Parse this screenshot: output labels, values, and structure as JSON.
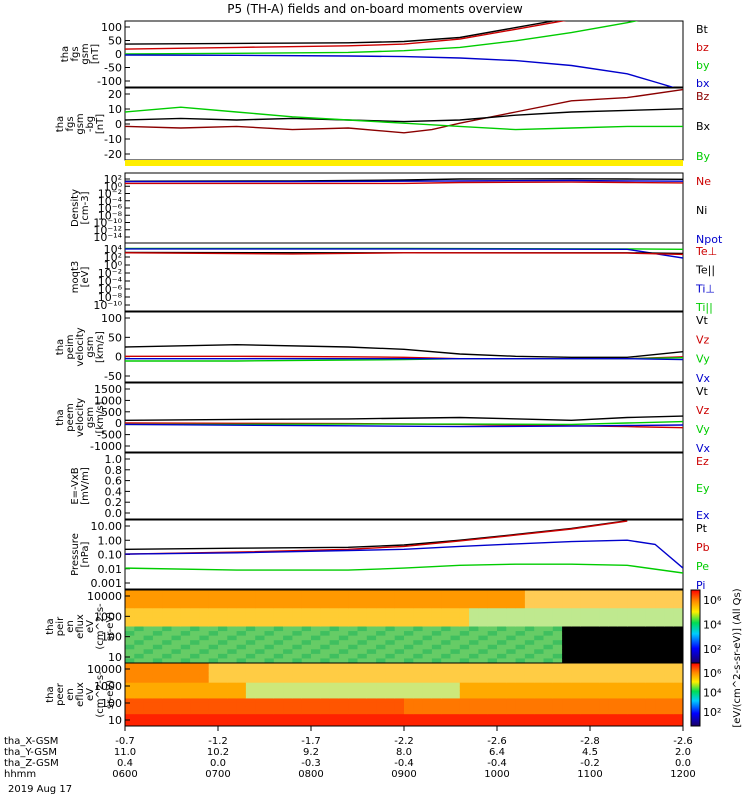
{
  "title": "P5 (TH-A) fields and on-board moments overview",
  "date_label": "2019 Aug 17",
  "chart_data": [
    {
      "id": "fgs_gsm",
      "type": "line",
      "ylabel": [
        "tha",
        "fgs",
        "gsm",
        "[nT]"
      ],
      "ylim": [
        -100,
        100
      ],
      "yticks": [
        "100",
        "50",
        "0",
        "-50",
        "-100"
      ],
      "legend": [
        {
          "name": "Bt",
          "color": "#000000"
        },
        {
          "name": "bz",
          "color": "#cc0000"
        },
        {
          "name": "by",
          "color": "#00cc00"
        },
        {
          "name": "bx",
          "color": "#0000cc"
        }
      ],
      "series": [
        {
          "name": "Bt",
          "color": "#000000",
          "t": [
            0,
            0.2,
            0.4,
            0.5,
            0.6,
            0.7,
            0.8,
            0.9,
            1
          ],
          "v": [
            30,
            32,
            34,
            38,
            50,
            80,
            110,
            140,
            160
          ]
        },
        {
          "name": "bz",
          "color": "#cc0000",
          "t": [
            0,
            0.2,
            0.4,
            0.5,
            0.6,
            0.7,
            0.8,
            0.9,
            1
          ],
          "v": [
            15,
            20,
            25,
            30,
            45,
            75,
            105,
            135,
            155
          ]
        },
        {
          "name": "by",
          "color": "#00cc00",
          "t": [
            0,
            0.2,
            0.4,
            0.5,
            0.6,
            0.7,
            0.8,
            0.9,
            1
          ],
          "v": [
            0,
            2,
            5,
            10,
            20,
            40,
            65,
            95,
            130
          ]
        },
        {
          "name": "bx",
          "color": "#0000cc",
          "t": [
            0,
            0.2,
            0.4,
            0.5,
            0.6,
            0.7,
            0.8,
            0.9,
            0.95,
            1
          ],
          "v": [
            -3,
            -4,
            -6,
            -8,
            -12,
            -20,
            -35,
            -60,
            -85,
            -110
          ]
        }
      ]
    },
    {
      "id": "fgs_dsl",
      "type": "line",
      "ylabel": [
        "tha",
        "fgs",
        "gsm",
        "-bg",
        "[nT]"
      ],
      "ylim": [
        -25,
        20
      ],
      "yticks": [
        "20",
        "10",
        "0",
        "-10",
        "-20"
      ],
      "legend": [
        {
          "name": "Bz",
          "color": "#8b0000"
        },
        {
          "name": "Bx",
          "color": "#000000"
        },
        {
          "name": "By",
          "color": "#00cc00"
        }
      ],
      "series": [
        {
          "name": "Bz",
          "color": "#8b0000",
          "t": [
            0,
            0.1,
            0.2,
            0.3,
            0.4,
            0.5,
            0.55,
            0.6,
            0.7,
            0.8,
            0.9,
            1
          ],
          "v": [
            -4,
            -5,
            -4,
            -6,
            -5,
            -8,
            -6,
            -2,
            5,
            12,
            14,
            19
          ]
        },
        {
          "name": "Bx",
          "color": "#000000",
          "t": [
            0,
            0.1,
            0.2,
            0.3,
            0.4,
            0.5,
            0.6,
            0.7,
            0.8,
            0.9,
            1
          ],
          "v": [
            0,
            1,
            0,
            1,
            0,
            -1,
            0,
            3,
            5,
            6,
            7
          ]
        },
        {
          "name": "By",
          "color": "#00cc00",
          "t": [
            0,
            0.1,
            0.2,
            0.3,
            0.4,
            0.5,
            0.6,
            0.7,
            0.8,
            0.9,
            1
          ],
          "v": [
            5,
            8,
            5,
            2,
            0,
            -2,
            -4,
            -6,
            -5,
            -4,
            -4
          ]
        }
      ]
    },
    {
      "id": "flag",
      "type": "bar",
      "color": "#ffee00"
    },
    {
      "id": "density",
      "type": "line",
      "log": true,
      "ylabel": [
        "Density",
        "[cm-3]"
      ],
      "ylim": [
        1e-14,
        1000.0
      ],
      "yticks": [
        "10^2",
        "10^0",
        "10^-2",
        "10^-4",
        "10^-6",
        "10^-8",
        "10^-10",
        "10^-12",
        "10^-14"
      ],
      "legend": [
        {
          "name": "Ne",
          "color": "#cc0000"
        },
        {
          "name": "Ni",
          "color": "#000000"
        },
        {
          "name": "Npot",
          "color": "#0000cc"
        }
      ],
      "series": [
        {
          "name": "Ni",
          "color": "#000000",
          "t": [
            0,
            0.3,
            0.5,
            0.6,
            0.8,
            0.9,
            1
          ],
          "v": [
            10,
            12,
            20,
            35,
            40,
            35,
            30
          ]
        },
        {
          "name": "Ne",
          "color": "#cc0000",
          "t": [
            0,
            0.3,
            0.5,
            0.6,
            0.8,
            0.9,
            1
          ],
          "v": [
            3,
            3,
            3,
            5,
            6,
            5,
            4
          ]
        },
        {
          "name": "Npot",
          "color": "#0000cc",
          "t": [
            0,
            0.3,
            0.5,
            0.6,
            0.8,
            0.9,
            1
          ],
          "v": [
            8,
            8,
            10,
            12,
            15,
            12,
            10
          ]
        }
      ]
    },
    {
      "id": "temperature",
      "type": "line",
      "log": true,
      "ylabel": [
        "moqt3",
        "[eV]"
      ],
      "ylim": [
        1e-10,
        100000.0
      ],
      "yticks": [
        "10^4",
        "10^2",
        "10^0",
        "10^-2",
        "10^-4",
        "10^-6",
        "10^-8",
        "10^-10"
      ],
      "legend": [
        {
          "name": "Te⊥",
          "color": "#cc0000"
        },
        {
          "name": "Te||",
          "color": "#000000"
        },
        {
          "name": "Ti⊥",
          "color": "#0000cc"
        },
        {
          "name": "Ti||",
          "color": "#00cc00"
        }
      ],
      "series": [
        {
          "name": "Ti||",
          "color": "#00cc00",
          "t": [
            0,
            0.5,
            0.9,
            1
          ],
          "v": [
            6000,
            6000,
            5000,
            4000
          ]
        },
        {
          "name": "Ti⊥",
          "color": "#0000cc",
          "t": [
            0,
            0.5,
            0.9,
            1
          ],
          "v": [
            5000,
            5000,
            4000,
            50
          ]
        },
        {
          "name": "Te||",
          "color": "#000000",
          "t": [
            0,
            0.5,
            0.9,
            1
          ],
          "v": [
            800,
            700,
            700,
            500
          ]
        },
        {
          "name": "Te⊥",
          "color": "#cc0000",
          "t": [
            0,
            0.3,
            0.5,
            0.9,
            1
          ],
          "v": [
            700,
            400,
            700,
            600,
            300
          ]
        }
      ]
    },
    {
      "id": "peim_velocity",
      "type": "line",
      "ylabel": [
        "tha",
        "peim",
        "velocity",
        "gsm",
        "[km/s]"
      ],
      "ylim": [
        -50,
        100
      ],
      "yticks": [
        "100",
        "50",
        "0",
        "-50"
      ],
      "legend": [
        {
          "name": "Vt",
          "color": "#000000"
        },
        {
          "name": "Vz",
          "color": "#cc0000"
        },
        {
          "name": "Vy",
          "color": "#00cc00"
        },
        {
          "name": "Vx",
          "color": "#0000cc"
        }
      ],
      "series": [
        {
          "name": "Vt",
          "color": "#000000",
          "t": [
            0,
            0.2,
            0.4,
            0.5,
            0.6,
            0.7,
            0.8,
            0.9,
            1
          ],
          "v": [
            25,
            30,
            25,
            20,
            10,
            5,
            3,
            3,
            15
          ]
        },
        {
          "name": "Vz",
          "color": "#cc0000",
          "t": [
            0,
            0.2,
            0.4,
            0.5,
            0.6,
            0.7,
            0.8,
            0.9,
            1
          ],
          "v": [
            5,
            5,
            4,
            3,
            0,
            0,
            0,
            0,
            4
          ]
        },
        {
          "name": "Vy",
          "color": "#00cc00",
          "t": [
            0,
            0.2,
            0.4,
            0.5,
            0.6,
            0.7,
            0.8,
            0.9,
            1
          ],
          "v": [
            -5,
            -5,
            -3,
            -2,
            0,
            0,
            0,
            0,
            2
          ]
        },
        {
          "name": "Vx",
          "color": "#0000cc",
          "t": [
            0,
            0.2,
            0.4,
            0.5,
            0.6,
            0.7,
            0.8,
            0.9,
            1
          ],
          "v": [
            0,
            0,
            0,
            0,
            0,
            0,
            0,
            0,
            -2
          ]
        }
      ]
    },
    {
      "id": "peem_velocity",
      "type": "line",
      "ylabel": [
        "tha",
        "peem",
        "velocity",
        "gsm",
        "[km/s]"
      ],
      "ylim": [
        -1000,
        1500
      ],
      "yticks": [
        "1500",
        "1000",
        "500",
        "0",
        "-500",
        "-1000"
      ],
      "legend": [
        {
          "name": "Vt",
          "color": "#000000"
        },
        {
          "name": "Vz",
          "color": "#cc0000"
        },
        {
          "name": "Vy",
          "color": "#00cc00"
        },
        {
          "name": "Vx",
          "color": "#0000cc"
        }
      ],
      "series": [
        {
          "name": "Vt",
          "color": "#000000",
          "t": [
            0,
            0.2,
            0.4,
            0.6,
            0.8,
            0.9,
            1
          ],
          "v": [
            150,
            180,
            200,
            250,
            150,
            250,
            300
          ]
        },
        {
          "name": "Vz",
          "color": "#cc0000",
          "t": [
            0,
            0.2,
            0.4,
            0.6,
            0.8,
            0.9,
            1
          ],
          "v": [
            50,
            40,
            30,
            0,
            -50,
            -80,
            -120
          ]
        },
        {
          "name": "Vy",
          "color": "#00cc00",
          "t": [
            0,
            0.2,
            0.4,
            0.6,
            0.8,
            0.9,
            1
          ],
          "v": [
            0,
            0,
            10,
            10,
            0,
            50,
            100
          ]
        },
        {
          "name": "Vx",
          "color": "#0000cc",
          "t": [
            0,
            0.2,
            0.4,
            0.6,
            0.8,
            0.9,
            1
          ],
          "v": [
            0,
            -30,
            -50,
            -80,
            -60,
            -40,
            -20
          ]
        }
      ]
    },
    {
      "id": "efield",
      "type": "line",
      "ylabel": [
        "E=-VxB",
        "[mV/m]"
      ],
      "ylim": [
        0,
        1
      ],
      "yticks": [
        "1.0",
        "0.8",
        "0.6",
        "0.4",
        "0.2",
        "0.0"
      ],
      "legend": [
        {
          "name": "Ez",
          "color": "#cc0000"
        },
        {
          "name": "Ey",
          "color": "#00cc00"
        },
        {
          "name": "Ex",
          "color": "#0000cc"
        }
      ],
      "series": []
    },
    {
      "id": "pressure",
      "type": "line",
      "log": true,
      "ylabel": [
        "Pressure",
        "[nPa]"
      ],
      "ylim": [
        0.001,
        20
      ],
      "yticks": [
        "10.00",
        "1.00",
        "0.10",
        "0.01",
        "0.001"
      ],
      "legend": [
        {
          "name": "Pt",
          "color": "#000000"
        },
        {
          "name": "Pb",
          "color": "#cc0000"
        },
        {
          "name": "Pe",
          "color": "#00cc00"
        },
        {
          "name": "Pi",
          "color": "#0000cc"
        }
      ],
      "series": [
        {
          "name": "Pt",
          "color": "#000000",
          "t": [
            0,
            0.2,
            0.4,
            0.5,
            0.6,
            0.7,
            0.8,
            0.9
          ],
          "v": [
            0.3,
            0.35,
            0.4,
            0.55,
            1.1,
            2.5,
            6,
            18
          ]
        },
        {
          "name": "Pb",
          "color": "#cc0000",
          "t": [
            0,
            0.2,
            0.4,
            0.5,
            0.6,
            0.7,
            0.8,
            0.9
          ],
          "v": [
            0.15,
            0.2,
            0.3,
            0.45,
            1,
            2.3,
            5.5,
            17
          ]
        },
        {
          "name": "Pi",
          "color": "#0000cc",
          "t": [
            0,
            0.2,
            0.4,
            0.5,
            0.6,
            0.7,
            0.8,
            0.9,
            0.95,
            1
          ],
          "v": [
            0.15,
            0.18,
            0.25,
            0.3,
            0.45,
            0.65,
            0.9,
            1.1,
            0.6,
            0.02
          ]
        },
        {
          "name": "Pe",
          "color": "#00cc00",
          "t": [
            0,
            0.2,
            0.4,
            0.5,
            0.6,
            0.7,
            0.8,
            0.9,
            1
          ],
          "v": [
            0.02,
            0.015,
            0.015,
            0.02,
            0.03,
            0.035,
            0.035,
            0.03,
            0.01
          ]
        }
      ]
    },
    {
      "id": "peir_spec",
      "type": "heatmap",
      "ylabel": [
        "tha",
        "peir",
        "en",
        "eflux",
        "eV",
        "(cm^2-s-",
        "sr-eV)"
      ],
      "yticks": [
        "10000",
        "1000",
        "100",
        "10"
      ]
    },
    {
      "id": "peer_spec",
      "type": "heatmap",
      "ylabel": [
        "tha",
        "peer",
        "en",
        "eflux",
        "eV",
        "(cm^2-s-",
        "sr-eV)"
      ],
      "yticks": [
        "10000",
        "1000",
        "100",
        "10"
      ]
    }
  ],
  "colorbar": {
    "label": "[eV/(cm^2-s-sr-eV)] (All Qs)",
    "ticks": [
      "10^6",
      "10^4",
      "10^2"
    ]
  },
  "x_axis": {
    "row_labels": [
      "tha_X-GSM",
      "tha_Y-GSM",
      "tha_Z-GSM",
      "hhmm"
    ],
    "columns": [
      [
        "-0.7",
        "11.0",
        "0.4",
        "0600"
      ],
      [
        "-1.2",
        "10.2",
        "0.0",
        "0700"
      ],
      [
        "-1.7",
        "9.2",
        "-0.3",
        "0800"
      ],
      [
        "-2.2",
        "8.0",
        "-0.4",
        "0900"
      ],
      [
        "-2.6",
        "6.4",
        "-0.4",
        "1000"
      ],
      [
        "-2.8",
        "4.5",
        "-0.2",
        "1100"
      ],
      [
        "-2.6",
        "2.0",
        "0.0",
        "1200"
      ]
    ]
  }
}
